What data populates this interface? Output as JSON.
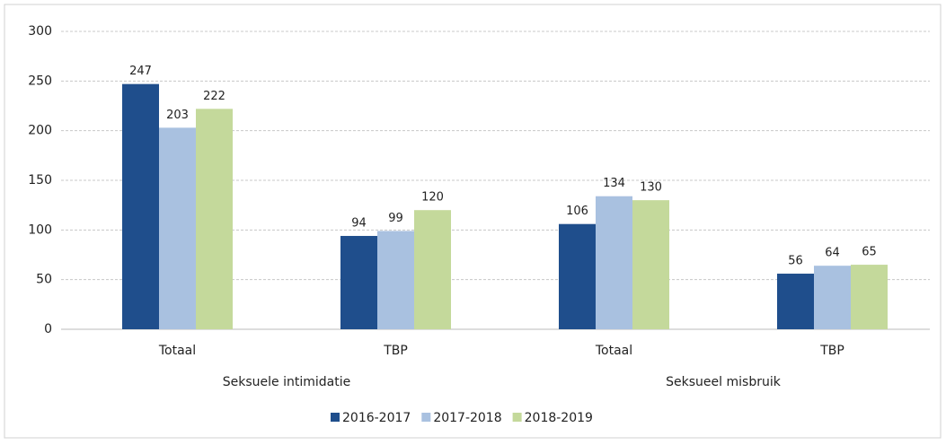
{
  "chart_data": {
    "type": "bar",
    "groups": [
      {
        "name": "Seksuele intimidatie",
        "categories": [
          "Totaal",
          "TBP"
        ]
      },
      {
        "name": "Seksueel misbruik",
        "categories": [
          "Totaal",
          "TBP"
        ]
      }
    ],
    "series": [
      {
        "name": "2016-2017",
        "color": "#1f4e8c",
        "values": [
          247,
          94,
          106,
          56
        ]
      },
      {
        "name": "2017-2018",
        "color": "#a9c1e0",
        "values": [
          203,
          99,
          134,
          64
        ]
      },
      {
        "name": "2018-2019",
        "color": "#c4d99b",
        "values": [
          222,
          120,
          130,
          65
        ]
      }
    ],
    "ylim": [
      0,
      300
    ],
    "yticks": [
      0,
      50,
      100,
      150,
      200,
      250,
      300
    ],
    "grid": true,
    "legend": "bottom"
  }
}
